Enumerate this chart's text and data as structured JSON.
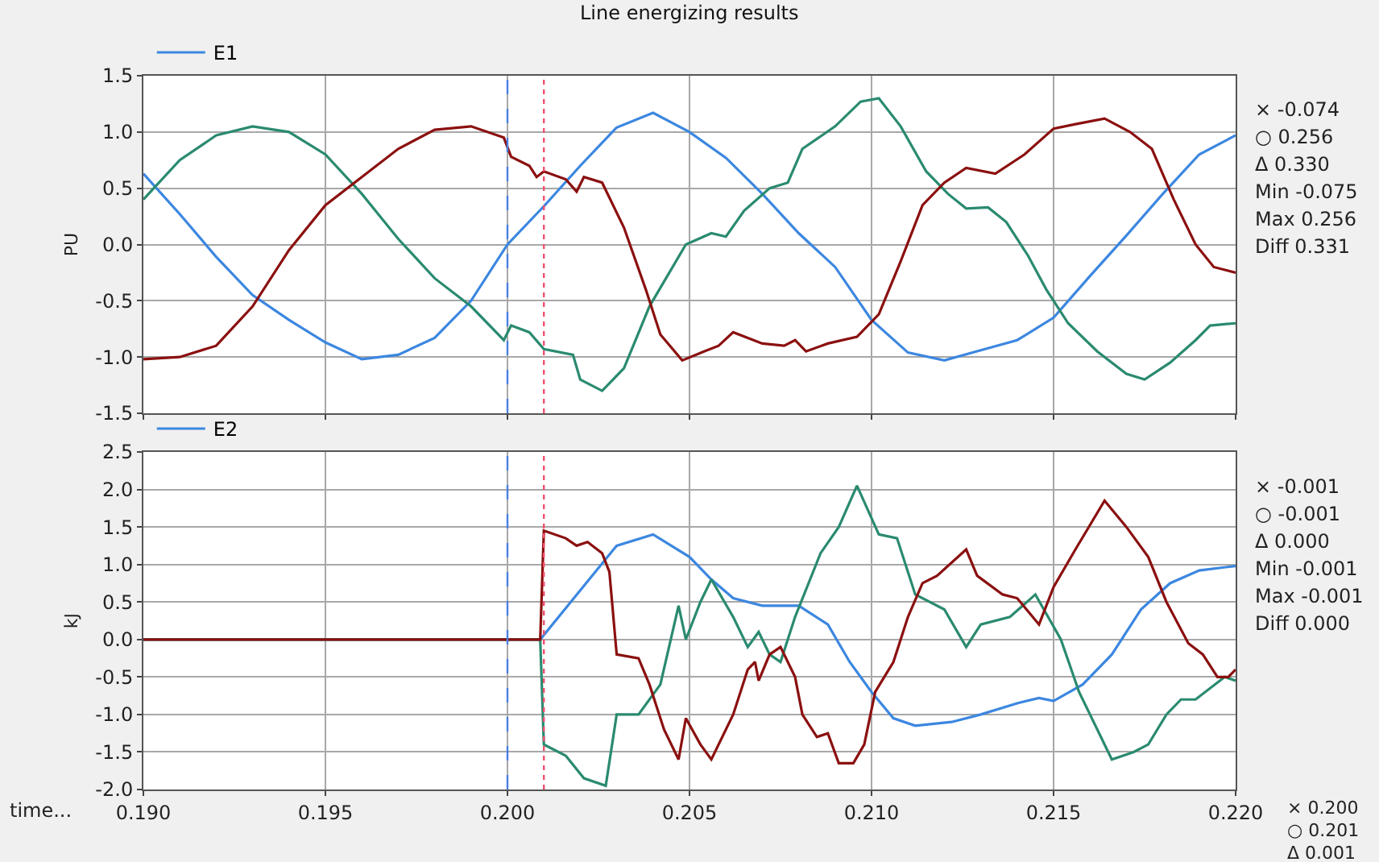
{
  "chart_data": [
    {
      "type": "line",
      "title": "Line energizing results",
      "ylabel": "PU",
      "xlim": [
        0.19,
        0.22
      ],
      "ylim": [
        -1.5,
        1.5
      ],
      "xticks": [
        {
          "value": 0.19,
          "label": null
        },
        {
          "value": 0.195,
          "label": null
        },
        {
          "value": 0.2,
          "label": null
        },
        {
          "value": 0.205,
          "label": null
        },
        {
          "value": 0.21,
          "label": null
        },
        {
          "value": 0.215,
          "label": null
        },
        {
          "value": 0.22,
          "label": null
        }
      ],
      "yticks": [
        {
          "value": -1.5,
          "label": "-1.5"
        },
        {
          "value": -1,
          "label": "-1.0"
        },
        {
          "value": -0.5,
          "label": "-0.5"
        },
        {
          "value": 0,
          "label": "0.0"
        },
        {
          "value": 0.5,
          "label": "0.5"
        },
        {
          "value": 1,
          "label": "1.0"
        },
        {
          "value": 1.5,
          "label": "1.5"
        }
      ],
      "tick_labels": "y",
      "grid": true,
      "legend": "top left",
      "series": [
        {
          "name": "E1",
          "color": "#3c87e0",
          "x": [
            0.19,
            0.191,
            0.192,
            0.193,
            0.194,
            0.195,
            0.196,
            0.197,
            0.198,
            0.199,
            0.2,
            0.201,
            0.202,
            0.203,
            0.204,
            0.205,
            0.206,
            0.207,
            0.208,
            0.209,
            0.21,
            0.211,
            0.212,
            0.213,
            0.214,
            0.215,
            0.216,
            0.217,
            0.218,
            0.219,
            0.22
          ],
          "values": [
            0.63,
            0.27,
            -0.11,
            -0.45,
            -0.67,
            -0.87,
            -1.02,
            -0.98,
            -0.83,
            -0.5,
            0.0,
            0.34,
            0.7,
            1.04,
            1.17,
            1.0,
            0.77,
            0.45,
            0.1,
            -0.2,
            -0.67,
            -0.96,
            -1.03,
            -0.94,
            -0.85,
            -0.65,
            -0.28,
            0.08,
            0.45,
            0.8,
            0.97
          ]
        },
        {
          "color": "#2a8a70",
          "x": [
            0.19,
            0.191,
            0.192,
            0.193,
            0.194,
            0.195,
            0.196,
            0.197,
            0.198,
            0.199,
            0.1999,
            0.2001,
            0.2006,
            0.201,
            0.2018,
            0.202,
            0.2026,
            0.2032,
            0.2039,
            0.2049,
            0.2056,
            0.206,
            0.2065,
            0.2072,
            0.2077,
            0.2081,
            0.209,
            0.2097,
            0.2102,
            0.2108,
            0.2115,
            0.2121,
            0.2126,
            0.2132,
            0.2137,
            0.2143,
            0.2148,
            0.2154,
            0.2162,
            0.217,
            0.2175,
            0.2182,
            0.2189,
            0.2193,
            0.22
          ],
          "values": [
            0.4,
            0.75,
            0.97,
            1.05,
            1.0,
            0.8,
            0.45,
            0.05,
            -0.3,
            -0.55,
            -0.85,
            -0.72,
            -0.78,
            -0.93,
            -0.98,
            -1.2,
            -1.3,
            -1.1,
            -0.55,
            0.0,
            0.1,
            0.07,
            0.3,
            0.5,
            0.55,
            0.85,
            1.05,
            1.27,
            1.3,
            1.05,
            0.65,
            0.45,
            0.32,
            0.33,
            0.2,
            -0.1,
            -0.4,
            -0.7,
            -0.95,
            -1.15,
            -1.2,
            -1.05,
            -0.85,
            -0.72,
            -0.7
          ]
        },
        {
          "color": "#8b1010",
          "x": [
            0.19,
            0.191,
            0.192,
            0.193,
            0.194,
            0.195,
            0.196,
            0.197,
            0.198,
            0.199,
            0.1999,
            0.2001,
            0.2006,
            0.2008,
            0.201,
            0.2016,
            0.2019,
            0.2021,
            0.2026,
            0.2032,
            0.2038,
            0.2042,
            0.2048,
            0.2054,
            0.2058,
            0.2062,
            0.207,
            0.2076,
            0.2079,
            0.2082,
            0.2088,
            0.2096,
            0.2102,
            0.2108,
            0.2114,
            0.212,
            0.2126,
            0.2134,
            0.2142,
            0.215,
            0.2156,
            0.2164,
            0.2171,
            0.2177,
            0.2183,
            0.2189,
            0.2194,
            0.22
          ],
          "values": [
            -1.02,
            -1.0,
            -0.9,
            -0.55,
            -0.05,
            0.35,
            0.6,
            0.85,
            1.02,
            1.05,
            0.95,
            0.78,
            0.7,
            0.6,
            0.65,
            0.58,
            0.47,
            0.6,
            0.55,
            0.15,
            -0.4,
            -0.8,
            -1.03,
            -0.95,
            -0.9,
            -0.78,
            -0.88,
            -0.9,
            -0.85,
            -0.95,
            -0.88,
            -0.82,
            -0.62,
            -0.15,
            0.35,
            0.55,
            0.68,
            0.63,
            0.8,
            1.03,
            1.07,
            1.12,
            1.0,
            0.85,
            0.4,
            0.0,
            -0.2,
            -0.25
          ]
        }
      ],
      "ref_lines": [
        {
          "axis": "x",
          "value": 0.2,
          "color": "#4a7fe0",
          "line_style": "dashed"
        },
        {
          "axis": "x",
          "value": 0.201,
          "color": "#f05070",
          "line_style": "dotted"
        }
      ],
      "annotations": [
        "× -0.074",
        "○ 0.256",
        "Δ 0.330",
        "Min -0.075",
        "Max 0.256",
        "Diff 0.331"
      ]
    },
    {
      "type": "line",
      "ylabel": "kJ",
      "xlabel": "time...",
      "xlim": [
        0.19,
        0.22
      ],
      "ylim": [
        -2.0,
        2.5
      ],
      "xticks": [
        {
          "value": 0.19,
          "label": "0.190"
        },
        {
          "value": 0.195,
          "label": "0.195"
        },
        {
          "value": 0.2,
          "label": "0.200"
        },
        {
          "value": 0.205,
          "label": "0.205"
        },
        {
          "value": 0.21,
          "label": "0.210"
        },
        {
          "value": 0.215,
          "label": "0.215"
        },
        {
          "value": 0.22,
          "label": "0.220"
        }
      ],
      "yticks": [
        {
          "value": -2,
          "label": "-2.0"
        },
        {
          "value": -1.5,
          "label": "-1.5"
        },
        {
          "value": -1,
          "label": "-1.0"
        },
        {
          "value": -0.5,
          "label": "-0.5"
        },
        {
          "value": 0,
          "label": "0.0"
        },
        {
          "value": 0.5,
          "label": "0.5"
        },
        {
          "value": 1,
          "label": "1.0"
        },
        {
          "value": 1.5,
          "label": "1.5"
        },
        {
          "value": 2,
          "label": "2.0"
        },
        {
          "value": 2.5,
          "label": "2.5"
        }
      ],
      "grid": true,
      "legend": "top left",
      "series": [
        {
          "name": "E2",
          "color": "#3c87e0",
          "x": [
            0.19,
            0.2009,
            0.203,
            0.204,
            0.205,
            0.2056,
            0.2062,
            0.207,
            0.208,
            0.2088,
            0.2094,
            0.21,
            0.2106,
            0.2112,
            0.2122,
            0.213,
            0.214,
            0.2146,
            0.215,
            0.2158,
            0.2166,
            0.2174,
            0.2182,
            0.219,
            0.22
          ],
          "values": [
            0.0,
            0.0,
            1.25,
            1.4,
            1.1,
            0.8,
            0.55,
            0.45,
            0.45,
            0.2,
            -0.3,
            -0.7,
            -1.05,
            -1.15,
            -1.1,
            -1.0,
            -0.85,
            -0.78,
            -0.82,
            -0.6,
            -0.2,
            0.4,
            0.75,
            0.92,
            0.98
          ]
        },
        {
          "color": "#2a8a70",
          "x": [
            0.19,
            0.2009,
            0.201,
            0.2016,
            0.2021,
            0.2027,
            0.203,
            0.2036,
            0.2042,
            0.2047,
            0.2049,
            0.2053,
            0.2056,
            0.2062,
            0.2066,
            0.2069,
            0.2072,
            0.2075,
            0.2079,
            0.2086,
            0.2091,
            0.2096,
            0.2102,
            0.2107,
            0.2112,
            0.212,
            0.2126,
            0.213,
            0.2138,
            0.2145,
            0.2152,
            0.2157,
            0.2166,
            0.2172,
            0.2176,
            0.2181,
            0.2185,
            0.2189,
            0.2197,
            0.22
          ],
          "values": [
            0.0,
            0.0,
            -1.4,
            -1.55,
            -1.85,
            -1.95,
            -1.0,
            -1.0,
            -0.6,
            0.45,
            0.0,
            0.5,
            0.8,
            0.3,
            -0.1,
            0.1,
            -0.2,
            -0.3,
            0.3,
            1.15,
            1.5,
            2.05,
            1.4,
            1.35,
            0.6,
            0.4,
            -0.1,
            0.2,
            0.3,
            0.6,
            0.0,
            -0.7,
            -1.6,
            -1.5,
            -1.4,
            -1.0,
            -0.8,
            -0.8,
            -0.5,
            -0.55
          ]
        },
        {
          "color": "#8b1010",
          "x": [
            0.19,
            0.2009,
            0.201,
            0.2016,
            0.2019,
            0.2022,
            0.2026,
            0.2028,
            0.203,
            0.2036,
            0.2039,
            0.2043,
            0.2047,
            0.2049,
            0.2053,
            0.2056,
            0.2062,
            0.2066,
            0.2068,
            0.2069,
            0.2072,
            0.2075,
            0.2079,
            0.2081,
            0.2085,
            0.2088,
            0.2091,
            0.2095,
            0.2098,
            0.2101,
            0.2106,
            0.211,
            0.2114,
            0.2118,
            0.2126,
            0.2129,
            0.2136,
            0.214,
            0.2146,
            0.215,
            0.2156,
            0.2164,
            0.217,
            0.2176,
            0.2181,
            0.2187,
            0.2191,
            0.2195,
            0.2198,
            0.22
          ],
          "values": [
            0.0,
            0.0,
            1.45,
            1.35,
            1.25,
            1.3,
            1.15,
            0.9,
            -0.2,
            -0.25,
            -0.6,
            -1.2,
            -1.6,
            -1.05,
            -1.4,
            -1.6,
            -1.0,
            -0.4,
            -0.3,
            -0.55,
            -0.2,
            -0.1,
            -0.5,
            -1.0,
            -1.3,
            -1.25,
            -1.65,
            -1.65,
            -1.4,
            -0.7,
            -0.3,
            0.3,
            0.75,
            0.85,
            1.2,
            0.85,
            0.6,
            0.55,
            0.2,
            0.7,
            1.2,
            1.85,
            1.5,
            1.1,
            0.5,
            -0.05,
            -0.2,
            -0.5,
            -0.5,
            -0.4
          ]
        }
      ],
      "ref_lines": [
        {
          "axis": "x",
          "value": 0.2,
          "color": "#4a7fe0",
          "line_style": "dashed"
        },
        {
          "axis": "x",
          "value": 0.201,
          "color": "#f05070",
          "line_style": "dotted"
        }
      ],
      "annotations": [
        "× -0.001",
        "○ -0.001",
        "Δ 0.000",
        "Min -0.001",
        "Max -0.001",
        "Diff 0.000",
        "× 0.200",
        "○ 0.201",
        "Δ 0.001"
      ]
    }
  ]
}
